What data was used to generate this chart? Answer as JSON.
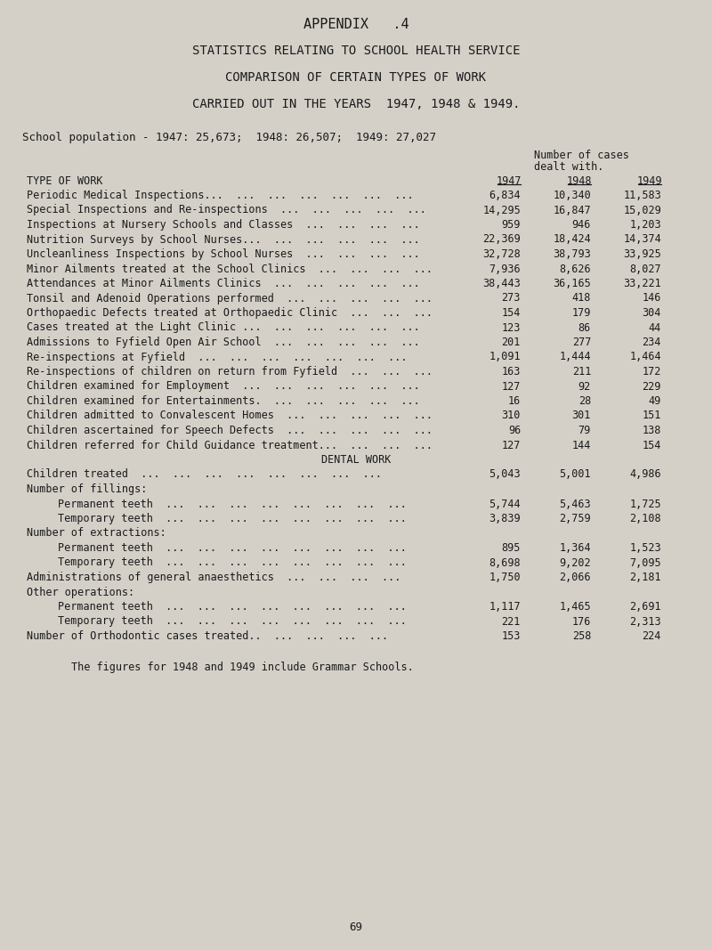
{
  "bg_color": "#d4d0c8",
  "text_color": "#1a1a1a",
  "title1": "APPENDIX   .4",
  "title2": "STATISTICS RELATING TO SCHOOL HEALTH SERVICE",
  "title3": "COMPARISON OF CERTAIN TYPES OF WORK",
  "title4": "CARRIED OUT IN THE YEARS  1947, 1948 & 1949.",
  "school_pop": "School population - 1947: 25,673;  1948: 26,507;  1949: 27,027",
  "col_header_right1": "Number of cases",
  "col_header_right2": "dealt with.",
  "rows": [
    {
      "label": "Periodic Medical Inspections...  ...  ...  ...  ...  ...  ...",
      "v1947": "6,834",
      "v1948": "10,340",
      "v1949": "11,583",
      "indent": 0,
      "type": "data"
    },
    {
      "label": "Special Inspections and Re-inspections  ...  ...  ...  ...  ...",
      "v1947": "14,295",
      "v1948": "16,847",
      "v1949": "15,029",
      "indent": 0,
      "type": "data"
    },
    {
      "label": "Inspections at Nursery Schools and Classes  ...  ...  ...  ...",
      "v1947": "959",
      "v1948": "946",
      "v1949": "1,203",
      "indent": 0,
      "type": "data"
    },
    {
      "label": "Nutrition Surveys by School Nurses...  ...  ...  ...  ...  ...",
      "v1947": "22,369",
      "v1948": "18,424",
      "v1949": "14,374",
      "indent": 0,
      "type": "data"
    },
    {
      "label": "Uncleanliness Inspections by School Nurses  ...  ...  ...  ...",
      "v1947": "32,728",
      "v1948": "38,793",
      "v1949": "33,925",
      "indent": 0,
      "type": "data"
    },
    {
      "label": "Minor Ailments treated at the School Clinics  ...  ...  ...  ...",
      "v1947": "7,936",
      "v1948": "8,626",
      "v1949": "8,027",
      "indent": 0,
      "type": "data"
    },
    {
      "label": "Attendances at Minor Ailments Clinics  ...  ...  ...  ...  ...",
      "v1947": "38,443",
      "v1948": "36,165",
      "v1949": "33,221",
      "indent": 0,
      "type": "data"
    },
    {
      "label": "Tonsil and Adenoid Operations performed  ...  ...  ...  ...  ...",
      "v1947": "273",
      "v1948": "418",
      "v1949": "146",
      "indent": 0,
      "type": "data"
    },
    {
      "label": "Orthopaedic Defects treated at Orthopaedic Clinic  ...  ...  ...",
      "v1947": "154",
      "v1948": "179",
      "v1949": "304",
      "indent": 0,
      "type": "data"
    },
    {
      "label": "Cases treated at the Light Clinic ...  ...  ...  ...  ...  ...",
      "v1947": "123",
      "v1948": "86",
      "v1949": "44",
      "indent": 0,
      "type": "data"
    },
    {
      "label": "Admissions to Fyfield Open Air School  ...  ...  ...  ...  ...",
      "v1947": "201",
      "v1948": "277",
      "v1949": "234",
      "indent": 0,
      "type": "data"
    },
    {
      "label": "Re-inspections at Fyfield  ...  ...  ...  ...  ...  ...  ...",
      "v1947": "1,091",
      "v1948": "1,444",
      "v1949": "1,464",
      "indent": 0,
      "type": "data"
    },
    {
      "label": "Re-inspections of children on return from Fyfield  ...  ...  ...",
      "v1947": "163",
      "v1948": "211",
      "v1949": "172",
      "indent": 0,
      "type": "data"
    },
    {
      "label": "Children examined for Employment  ...  ...  ...  ...  ...  ...",
      "v1947": "127",
      "v1948": "92",
      "v1949": "229",
      "indent": 0,
      "type": "data"
    },
    {
      "label": "Children examined for Entertainments.  ...  ...  ...  ...  ...",
      "v1947": "16",
      "v1948": "28",
      "v1949": "49",
      "indent": 0,
      "type": "data"
    },
    {
      "label": "Children admitted to Convalescent Homes  ...  ...  ...  ...  ...",
      "v1947": "310",
      "v1948": "301",
      "v1949": "151",
      "indent": 0,
      "type": "data"
    },
    {
      "label": "Children ascertained for Speech Defects  ...  ...  ...  ...  ...",
      "v1947": "96",
      "v1948": "79",
      "v1949": "138",
      "indent": 0,
      "type": "data"
    },
    {
      "label": "Children referred for Child Guidance treatment...  ...  ...  ...",
      "v1947": "127",
      "v1948": "144",
      "v1949": "154",
      "indent": 0,
      "type": "data"
    },
    {
      "label": "DENTAL WORK",
      "v1947": "",
      "v1948": "",
      "v1949": "",
      "indent": 0,
      "type": "section"
    },
    {
      "label": "Children treated  ...  ...  ...  ...  ...  ...  ...  ...",
      "v1947": "5,043",
      "v1948": "5,001",
      "v1949": "4,986",
      "indent": 0,
      "type": "data"
    },
    {
      "label": "Number of fillings:",
      "v1947": "",
      "v1948": "",
      "v1949": "",
      "indent": 0,
      "type": "subhead"
    },
    {
      "label": "Permanent teeth  ...  ...  ...  ...  ...  ...  ...  ...",
      "v1947": "5,744",
      "v1948": "5,463",
      "v1949": "1,725",
      "indent": 1,
      "type": "data"
    },
    {
      "label": "Temporary teeth  ...  ...  ...  ...  ...  ...  ...  ...",
      "v1947": "3,839",
      "v1948": "2,759",
      "v1949": "2,108",
      "indent": 1,
      "type": "data"
    },
    {
      "label": "Number of extractions:",
      "v1947": "",
      "v1948": "",
      "v1949": "",
      "indent": 0,
      "type": "subhead"
    },
    {
      "label": "Permanent teeth  ...  ...  ...  ...  ...  ...  ...  ...",
      "v1947": "895",
      "v1948": "1,364",
      "v1949": "1,523",
      "indent": 1,
      "type": "data"
    },
    {
      "label": "Temporary teeth  ...  ...  ...  ...  ...  ...  ...  ...",
      "v1947": "8,698",
      "v1948": "9,202",
      "v1949": "7,095",
      "indent": 1,
      "type": "data"
    },
    {
      "label": "Administrations of general anaesthetics  ...  ...  ...  ...",
      "v1947": "1,750",
      "v1948": "2,066",
      "v1949": "2,181",
      "indent": 0,
      "type": "data"
    },
    {
      "label": "Other operations:",
      "v1947": "",
      "v1948": "",
      "v1949": "",
      "indent": 0,
      "type": "subhead"
    },
    {
      "label": "Permanent teeth  ...  ...  ...  ...  ...  ...  ...  ...",
      "v1947": "1,117",
      "v1948": "1,465",
      "v1949": "2,691",
      "indent": 1,
      "type": "data"
    },
    {
      "label": "Temporary teeth  ...  ...  ...  ...  ...  ...  ...  ...",
      "v1947": "221",
      "v1948": "176",
      "v1949": "2,313",
      "indent": 1,
      "type": "data"
    },
    {
      "label": "Number of Orthodontic cases treated..  ...  ...  ...  ...",
      "v1947": "153",
      "v1948": "258",
      "v1949": "224",
      "indent": 0,
      "type": "data"
    }
  ],
  "footnote": "The figures for 1948 and 1949 include Grammar Schools.",
  "page_number": "69"
}
